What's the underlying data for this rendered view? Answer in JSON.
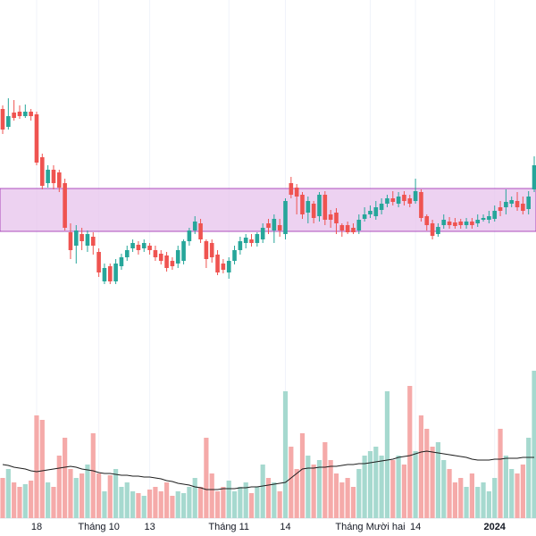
{
  "chart_data": {
    "type": "candlestick",
    "categories": [
      null,
      null,
      null,
      null,
      null,
      null,
      "18",
      null,
      null,
      null,
      null,
      null,
      null,
      null,
      null,
      null,
      null,
      "Tháng 10",
      null,
      null,
      null,
      null,
      null,
      null,
      null,
      null,
      "13",
      null,
      null,
      null,
      null,
      null,
      null,
      null,
      null,
      null,
      null,
      null,
      null,
      null,
      "Tháng 11",
      null,
      null,
      null,
      null,
      null,
      null,
      null,
      null,
      null,
      "14",
      null,
      null,
      null,
      null,
      null,
      null,
      null,
      null,
      null,
      null,
      null,
      null,
      null,
      null,
      "Tháng Mười hai",
      null,
      null,
      null,
      null,
      null,
      null,
      null,
      "14",
      null,
      null,
      null,
      null,
      null,
      null,
      null,
      null,
      null,
      null,
      null,
      null,
      null,
      "2024",
      null,
      null,
      null,
      null,
      null,
      null,
      null
    ],
    "open": [
      478,
      458,
      474,
      475,
      470,
      475,
      472,
      424,
      395,
      410,
      407,
      395,
      340,
      325,
      338,
      325,
      335,
      318,
      285,
      302,
      285,
      302,
      312,
      322,
      326,
      322,
      325,
      320,
      316,
      314,
      308,
      305,
      308,
      330,
      342,
      350,
      330,
      328,
      315,
      305,
      295,
      308,
      320,
      328,
      332,
      328,
      332,
      350,
      342,
      348,
      338,
      395,
      390,
      382,
      362,
      372,
      358,
      382,
      360,
      362,
      348,
      348,
      345,
      342,
      355,
      360,
      358,
      365,
      372,
      378,
      372,
      382,
      378,
      375,
      385,
      358,
      350,
      338,
      348,
      352,
      351,
      352,
      348,
      352,
      350,
      354,
      354,
      355,
      368,
      368,
      372,
      375,
      372,
      366,
      388
    ],
    "high": [
      482,
      490,
      488,
      482,
      483,
      478,
      475,
      428,
      415,
      415,
      410,
      400,
      350,
      348,
      345,
      342,
      340,
      322,
      305,
      305,
      310,
      316,
      325,
      332,
      330,
      332,
      328,
      325,
      320,
      318,
      312,
      325,
      332,
      345,
      358,
      355,
      332,
      332,
      320,
      310,
      312,
      325,
      335,
      338,
      338,
      340,
      350,
      355,
      360,
      355,
      378,
      402,
      394,
      385,
      380,
      375,
      385,
      386,
      365,
      367,
      350,
      352,
      350,
      360,
      368,
      370,
      375,
      378,
      382,
      386,
      385,
      386,
      382,
      400,
      388,
      360,
      354,
      350,
      360,
      357,
      356,
      355,
      356,
      356,
      360,
      360,
      364,
      370,
      375,
      388,
      380,
      385,
      380,
      386,
      425
    ],
    "low": [
      450,
      455,
      465,
      467,
      468,
      465,
      415,
      388,
      390,
      388,
      385,
      342,
      310,
      305,
      320,
      318,
      315,
      290,
      282,
      282,
      282,
      298,
      308,
      318,
      315,
      318,
      315,
      308,
      304,
      296,
      298,
      300,
      304,
      325,
      338,
      328,
      300,
      306,
      292,
      294,
      288,
      304,
      315,
      322,
      324,
      324,
      328,
      338,
      328,
      335,
      332,
      378,
      360,
      355,
      350,
      350,
      352,
      348,
      345,
      338,
      335,
      338,
      338,
      338,
      352,
      356,
      354,
      360,
      368,
      370,
      368,
      370,
      368,
      372,
      352,
      342,
      332,
      335,
      344,
      344,
      344,
      344,
      344,
      344,
      346,
      352,
      350,
      352,
      358,
      360,
      368,
      364,
      360,
      360,
      385
    ],
    "close": [
      455,
      470,
      468,
      470,
      475,
      470,
      418,
      392,
      410,
      395,
      390,
      345,
      320,
      342,
      330,
      338,
      325,
      295,
      300,
      285,
      305,
      312,
      320,
      328,
      320,
      328,
      320,
      312,
      308,
      300,
      302,
      320,
      330,
      342,
      352,
      332,
      310,
      312,
      295,
      298,
      308,
      320,
      330,
      334,
      328,
      338,
      345,
      345,
      355,
      342,
      375,
      382,
      380,
      360,
      375,
      356,
      382,
      354,
      354,
      350,
      342,
      340,
      340,
      354,
      360,
      364,
      368,
      372,
      378,
      374,
      380,
      375,
      372,
      386,
      356,
      348,
      336,
      346,
      354,
      348,
      347,
      348,
      352,
      348,
      354,
      356,
      358,
      364,
      364,
      374,
      376,
      368,
      364,
      380,
      415
    ],
    "volume": [
      45,
      55,
      40,
      35,
      38,
      42,
      115,
      110,
      40,
      35,
      70,
      90,
      55,
      45,
      50,
      60,
      95,
      50,
      30,
      48,
      55,
      35,
      40,
      30,
      28,
      25,
      32,
      35,
      30,
      40,
      25,
      30,
      28,
      35,
      45,
      35,
      90,
      50,
      30,
      35,
      42,
      30,
      35,
      40,
      28,
      35,
      60,
      45,
      40,
      30,
      142,
      80,
      55,
      95,
      70,
      60,
      65,
      85,
      65,
      50,
      40,
      45,
      35,
      55,
      70,
      75,
      80,
      70,
      142,
      65,
      70,
      60,
      148,
      75,
      115,
      100,
      80,
      85,
      65,
      55,
      40,
      45,
      35,
      50,
      35,
      40,
      30,
      45,
      100,
      70,
      55,
      50,
      60,
      90,
      165
    ],
    "volume_ma": [
      60,
      59,
      57,
      56,
      55,
      53,
      52,
      53,
      54,
      55,
      56,
      57,
      58,
      57,
      55,
      54,
      53,
      51,
      50,
      50,
      49,
      48,
      48,
      47,
      47,
      46,
      46,
      45,
      44,
      42,
      41,
      39,
      38,
      37,
      35,
      34,
      32,
      32,
      32,
      33,
      33,
      33,
      34,
      34,
      35,
      35,
      36,
      37,
      38,
      39,
      40,
      45,
      50,
      55,
      56,
      56,
      57,
      57,
      58,
      58,
      59,
      60,
      60,
      61,
      61,
      62,
      63,
      64,
      65,
      66,
      68,
      69,
      70,
      72,
      74,
      75,
      74,
      73,
      72,
      71,
      70,
      69,
      68,
      66,
      65,
      65,
      65,
      66,
      66,
      67,
      67,
      67,
      68,
      68,
      68
    ],
    "zone": [
      341,
      389
    ],
    "ylim": [
      0,
      600
    ],
    "volume_ylim": [
      0,
      200
    ],
    "up_color": "#26a69a",
    "down_color": "#ef5350",
    "volume_up_color": "#a6d9cf",
    "volume_down_color": "#f5aaa9",
    "ma_color": "#1e1e1e",
    "zone_color": "#e7c3ec",
    "zone_border_color": "#9c27b0",
    "grid": true
  }
}
